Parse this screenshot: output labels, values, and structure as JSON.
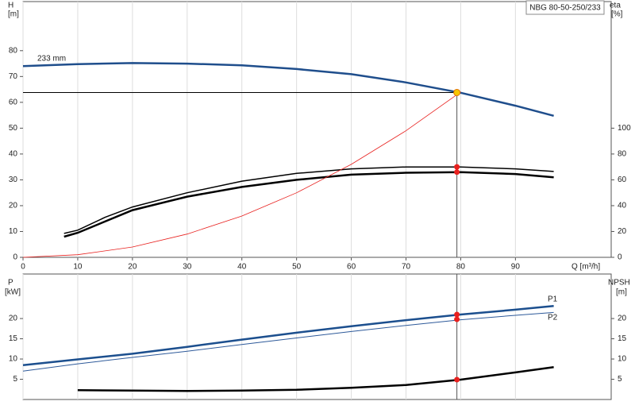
{
  "chart_data": [
    {
      "type": "line",
      "title": "NBG 80-50-250/233",
      "ylabel": [
        "H",
        "[m]"
      ],
      "y2label": [
        "eta",
        "[%]"
      ],
      "xlabel": "Q [m³/h]",
      "xlim": [
        0,
        107.5
      ],
      "xticks": [
        0,
        10,
        20,
        30,
        40,
        50,
        60,
        70,
        80,
        90
      ],
      "ylim": [
        0,
        99
      ],
      "yticks": [
        0,
        10,
        20,
        30,
        40,
        50,
        60,
        70,
        80
      ],
      "y2lim": [
        0,
        198
      ],
      "y2ticks": [
        0,
        20,
        40,
        60,
        80,
        100
      ],
      "grid": true,
      "series": [
        {
          "name": "233 mm",
          "color": "#1f4e8c",
          "width": 2.5,
          "x": [
            0,
            10,
            20,
            30,
            40,
            50,
            60,
            70,
            80,
            90,
            97
          ],
          "values": [
            74,
            74.8,
            75.2,
            75,
            74.3,
            72.9,
            70.9,
            67.7,
            63.7,
            58.7,
            54.8
          ]
        },
        {
          "color": "#000000",
          "width": 1.5,
          "axis": "y2",
          "x": [
            7.5,
            10,
            15,
            20,
            30,
            40,
            50,
            60,
            70,
            80,
            90,
            97
          ],
          "values": [
            18.5,
            21,
            31,
            39,
            50,
            59,
            65,
            68.5,
            70,
            70,
            68.5,
            66.5
          ]
        },
        {
          "color": "#000000",
          "width": 2.5,
          "axis": "y2",
          "x": [
            7.5,
            10,
            20,
            30,
            40,
            50,
            60,
            70,
            80,
            90,
            97
          ],
          "values": [
            16,
            19,
            36.5,
            47,
            54.5,
            60,
            64,
            65.5,
            66,
            64.5,
            62
          ]
        },
        {
          "color": "#e8201e",
          "width": 0.8,
          "x": [
            0,
            10,
            20,
            30,
            40,
            50,
            60,
            70,
            80
          ],
          "values": [
            0,
            1,
            4,
            9,
            16,
            25,
            36,
            49,
            64
          ]
        }
      ],
      "duty_point": {
        "x": 79.3,
        "y": 63.8,
        "color": "#f7c600"
      },
      "markers": {
        "color": "#e8201e",
        "axis": "y2",
        "x": [
          79.3,
          79.3
        ],
        "values": [
          70,
          66
        ]
      }
    },
    {
      "type": "line",
      "ylabel": [
        "P",
        "[kW]"
      ],
      "y2label": [
        "NPSH",
        "[m]"
      ],
      "ylim": [
        0,
        31
      ],
      "yticks": [
        5,
        10,
        15,
        20
      ],
      "y2lim": [
        0,
        31
      ],
      "y2ticks": [
        5,
        10,
        15,
        20
      ],
      "grid": true,
      "series": [
        {
          "name": "P1",
          "color": "#1c4f8e",
          "width": 2.5,
          "x": [
            0,
            10,
            20,
            30,
            40,
            50,
            60,
            70,
            80,
            90,
            97
          ],
          "values": [
            8.5,
            9.9,
            11.3,
            13,
            14.8,
            16.5,
            18.1,
            19.6,
            21,
            22.2,
            23.1
          ]
        },
        {
          "name": "P2",
          "color": "#2e5a9a",
          "width": 1,
          "x": [
            0,
            10,
            20,
            30,
            40,
            50,
            60,
            70,
            80,
            90,
            97
          ],
          "values": [
            7,
            8.8,
            10.4,
            11.9,
            13.6,
            15.2,
            16.8,
            18.3,
            19.7,
            20.8,
            21.5
          ]
        },
        {
          "color": "#000000",
          "width": 2.5,
          "axis": "y2",
          "x": [
            10,
            20,
            30,
            40,
            50,
            60,
            70,
            80,
            90,
            97
          ],
          "values": [
            2.3,
            2.2,
            2.1,
            2.2,
            2.4,
            2.9,
            3.6,
            4.9,
            6.7,
            8
          ]
        }
      ],
      "markers": {
        "color": "#e8201e",
        "x": [
          79.3,
          79.3,
          79.3
        ],
        "values": [
          21,
          19.8,
          4.9
        ]
      }
    }
  ]
}
